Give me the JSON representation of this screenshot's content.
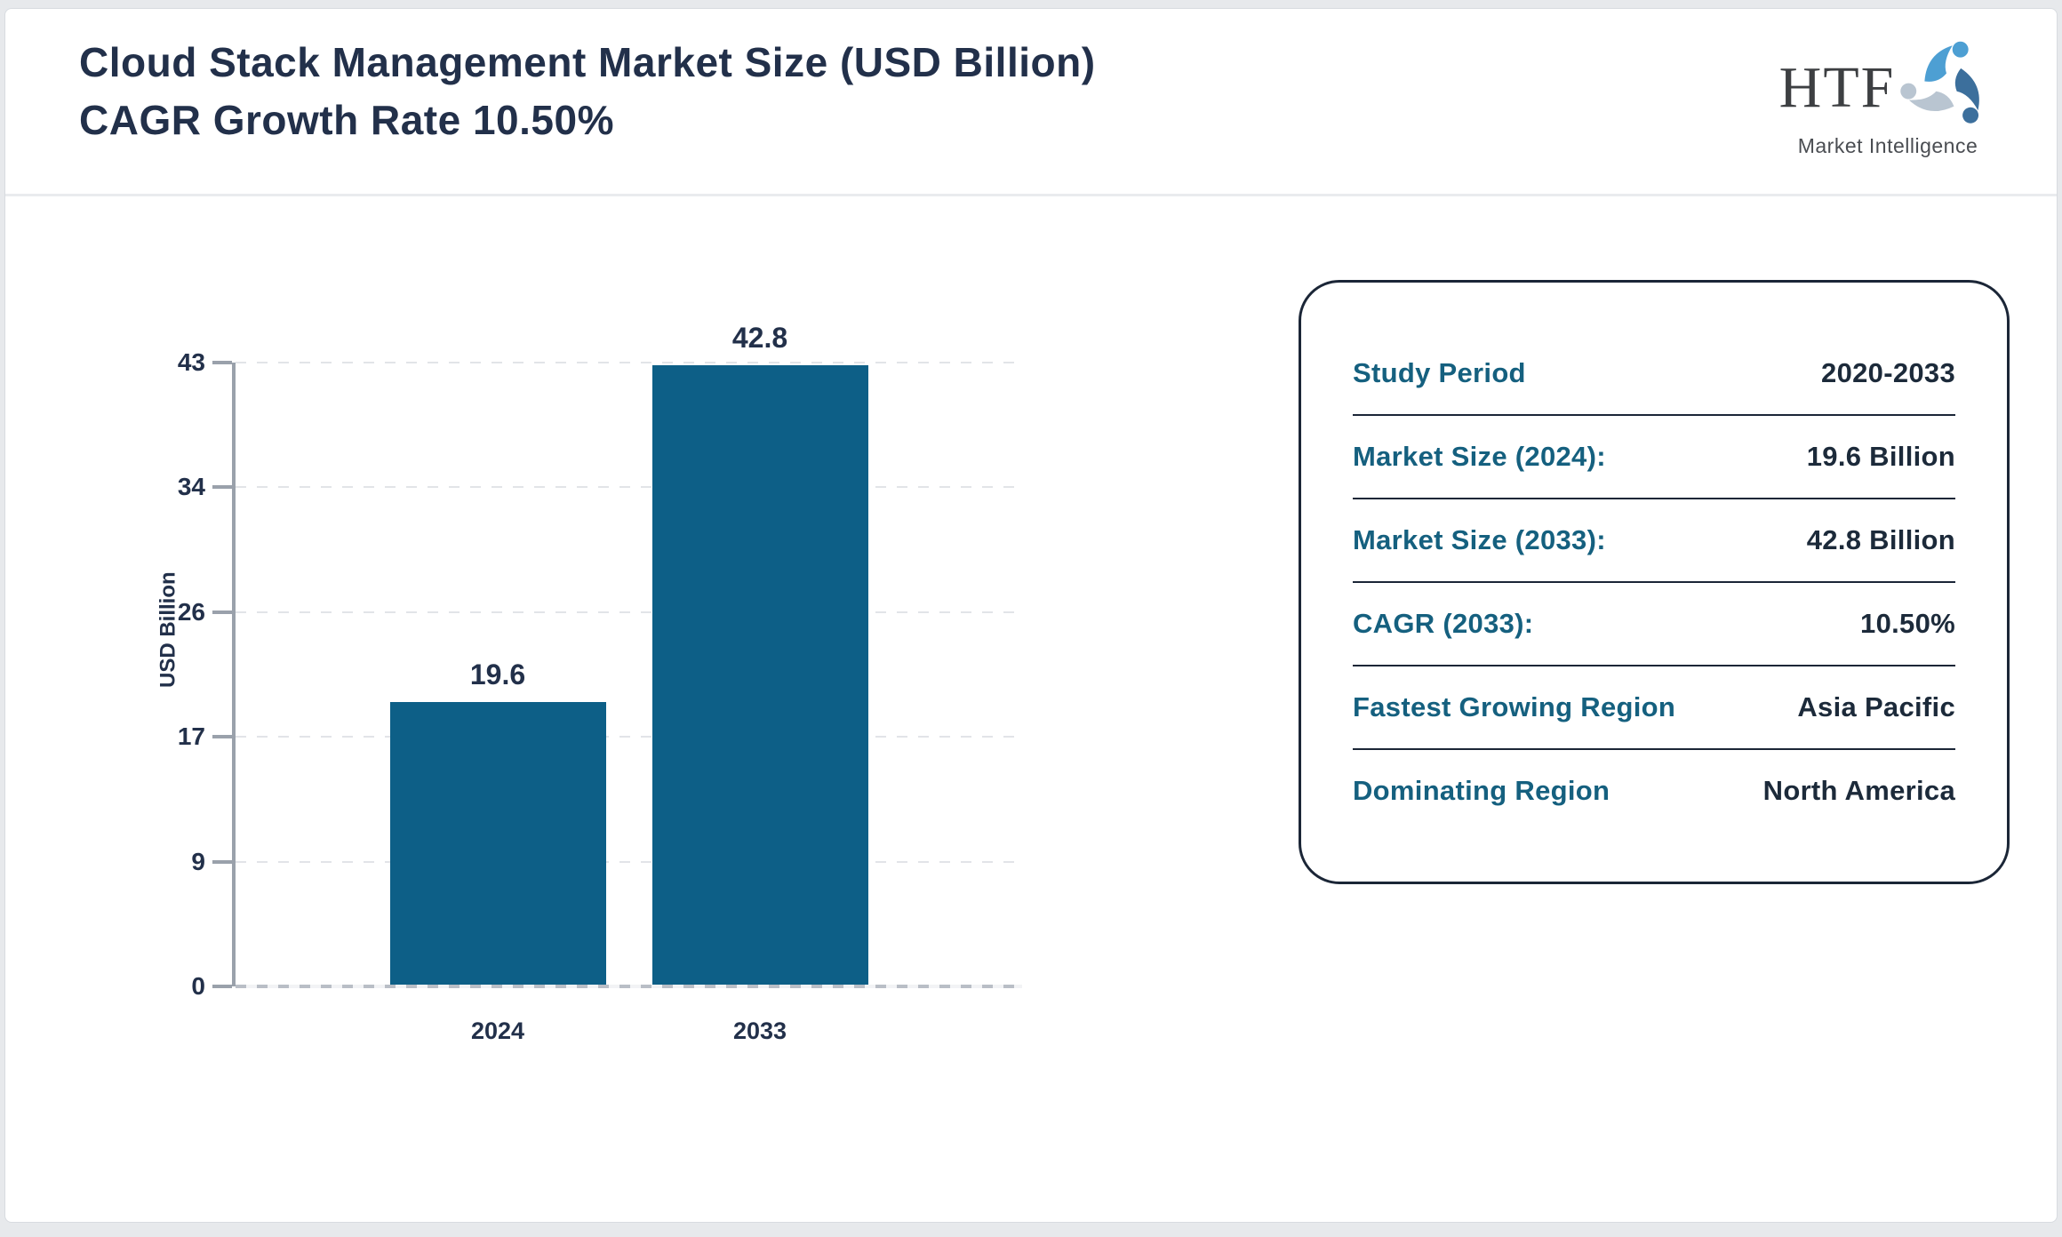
{
  "header": {
    "title": "Cloud Stack Management Market Size (USD Billion) CAGR Growth Rate 10.50%",
    "logo": {
      "text": "HTF",
      "subtext": "Market Intelligence",
      "icon": "triskelion-figures-icon",
      "icon_colors": [
        "#4d9fd3",
        "#3c6f9c",
        "#b9c5d1"
      ]
    }
  },
  "chart_data": {
    "type": "bar",
    "title": "Cloud Stack Management Market Size (USD Billion) CAGR Growth Rate 10.50%",
    "categories": [
      "2024",
      "2033"
    ],
    "values": [
      19.6,
      42.8
    ],
    "bar_labels": [
      "19.6",
      "42.8"
    ],
    "xlabel": "",
    "ylabel": "USD Billion",
    "ylim": [
      0,
      43
    ],
    "yticks": [
      "0",
      "9",
      "17",
      "26",
      "34",
      "43"
    ],
    "grid": "horizontal-dashed",
    "legend": "none",
    "bar_color": "#0d5f87"
  },
  "info_panel": {
    "rows": [
      {
        "label": "Study Period",
        "value": "2020-2033"
      },
      {
        "label": "Market Size (2024):",
        "value": "19.6 Billion"
      },
      {
        "label": "Market Size (2033):",
        "value": "42.8 Billion"
      },
      {
        "label": "CAGR (2033):",
        "value": "10.50%"
      },
      {
        "label": "Fastest Growing Region",
        "value": "Asia Pacific"
      },
      {
        "label": "Dominating Region",
        "value": "North America"
      }
    ]
  },
  "colors": {
    "bar": "#0d5f87",
    "label_teal": "#15607f",
    "text_navy": "#22304a",
    "axis_gray": "#9aa1ab",
    "panel_border": "#1b2637",
    "page_background": "#e7e9ec"
  }
}
